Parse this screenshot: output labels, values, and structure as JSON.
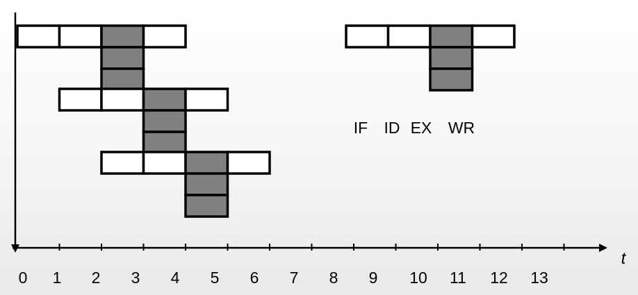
{
  "axis": {
    "t_label": "t",
    "ticks": [
      "0",
      "1",
      "2",
      "3",
      "4",
      "5",
      "6",
      "7",
      "8",
      "9",
      "10",
      "11",
      "12",
      "13"
    ]
  },
  "legend": {
    "stages": [
      "IF",
      "ID",
      "EX",
      "WR"
    ],
    "shaded_stage": "EX",
    "ex_stack_depth": 3
  },
  "instructions": [
    {
      "start": 0,
      "stages": [
        "IF",
        "ID",
        "EX",
        "WR"
      ],
      "ex_stack_depth": 3
    },
    {
      "start": 1,
      "stages": [
        "IF",
        "ID",
        "EX",
        "WR"
      ],
      "ex_stack_depth": 3
    },
    {
      "start": 2,
      "stages": [
        "IF",
        "ID",
        "EX",
        "WR"
      ],
      "ex_stack_depth": 3
    }
  ],
  "colors": {
    "empty_fill": "#ffffff",
    "shaded_fill": "#808080",
    "stroke": "#000000"
  }
}
